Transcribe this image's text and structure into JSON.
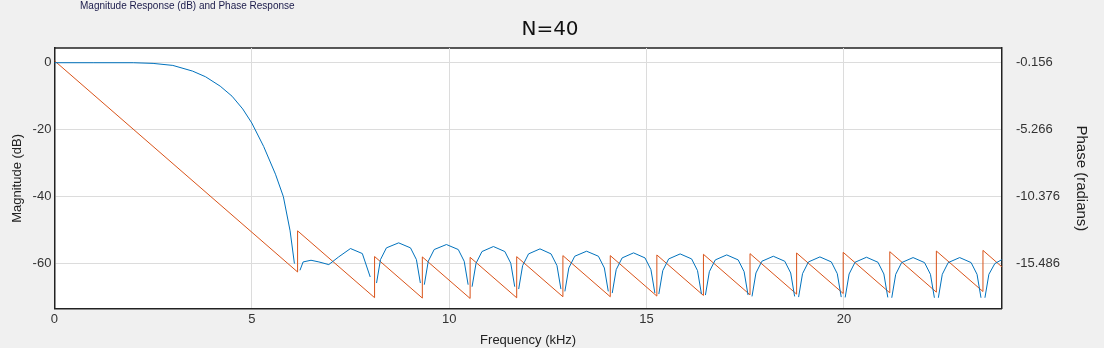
{
  "chart_data": {
    "type": "line",
    "title": "N=40",
    "xlabel": "Frequency (kHz)",
    "ylabel": "Magnitude (dB)",
    "y2label": "Phase (radians)",
    "annotations": [
      "Magnitude Response (dB) and Phase Response"
    ],
    "xlim": [
      0,
      24
    ],
    "xticks": [
      0,
      5,
      10,
      15,
      20
    ],
    "ylim": [
      -73.5,
      4.4
    ],
    "yticks": [
      -60,
      -40,
      -20,
      0
    ],
    "y2lim": [
      -18.94,
      0.968
    ],
    "y2ticks": [
      -15.486,
      -10.376,
      -5.266,
      -0.156
    ],
    "grid": true,
    "legend": false,
    "marker": "none",
    "line_style": "solid",
    "series": [
      {
        "color": "#0072bd",
        "x": [
          0,
          1,
          2,
          2.5,
          3,
          3.5,
          3.83,
          4.2,
          4.5,
          4.77,
          5,
          5.3,
          5.6,
          5.8,
          5.97,
          6.08,
          6.16,
          6.22,
          6.3,
          6.5,
          6.7,
          6.95,
          7.2,
          7.5,
          7.8,
          8,
          8.11,
          8.16,
          8.26,
          8.41,
          8.72,
          9.02,
          9.17,
          9.27,
          9.32,
          9.37,
          9.47,
          9.62,
          9.93,
          10.23,
          10.38,
          10.48,
          10.53,
          10.58,
          10.68,
          10.83,
          11.12,
          11.41,
          11.56,
          11.66,
          11.71,
          11.76,
          11.86,
          12.01,
          12.3,
          12.58,
          12.73,
          12.83,
          12.88,
          12.93,
          13.03,
          13.18,
          13.48,
          13.78,
          13.93,
          14.03,
          14.08,
          14.13,
          14.23,
          14.38,
          14.67,
          14.96,
          15.11,
          15.21,
          15.26,
          15.31,
          15.41,
          15.56,
          15.85,
          16.14,
          16.29,
          16.39,
          16.44,
          16.49,
          16.59,
          16.74,
          17.03,
          17.32,
          17.47,
          17.57,
          17.62,
          17.67,
          17.77,
          17.92,
          18.21,
          18.5,
          18.65,
          18.75,
          18.8,
          18.85,
          18.95,
          19.1,
          19.39,
          19.68,
          19.83,
          19.93,
          19.98,
          20.03,
          20.13,
          20.28,
          20.57,
          20.86,
          21.01,
          21.11,
          21.16,
          21.21,
          21.31,
          21.46,
          21.75,
          22.04,
          22.19,
          22.29,
          22.34,
          22.39,
          22.49,
          22.64,
          22.93,
          23.22,
          23.37,
          23.47,
          23.52,
          23.57,
          23.67,
          23.82,
          24
        ],
        "values": [
          0,
          0,
          0,
          -0.2,
          -0.8,
          -2.5,
          -4.2,
          -7,
          -10,
          -13.8,
          -18,
          -25,
          -33.3,
          -40,
          -50.2,
          -60,
          null,
          -62,
          -59.5,
          -59,
          -59.5,
          -60.3,
          -58,
          -55.5,
          -57,
          -64,
          null,
          -65.8,
          -58.8,
          -55.3,
          -53.8,
          -55.3,
          -58.8,
          -65.8,
          null,
          -66.3,
          -59.3,
          -55.8,
          -54.3,
          -55.8,
          -59.3,
          -66.3,
          null,
          -66.9,
          -59.9,
          -56.4,
          -54.9,
          -56.4,
          -59.9,
          -66.9,
          null,
          -67.6,
          -60.6,
          -57.1,
          -55.6,
          -57.1,
          -60.6,
          -67.6,
          null,
          -68.3,
          -61.3,
          -57.8,
          -56.3,
          -57.8,
          -61.3,
          -68.3,
          null,
          -68.8,
          -61.8,
          -58.3,
          -56.8,
          -58.3,
          -61.8,
          -68.8,
          null,
          -69.1,
          -62.1,
          -58.6,
          -57.1,
          -58.6,
          -62.1,
          -69.1,
          null,
          -69.4,
          -62.4,
          -58.9,
          -57.4,
          -58.9,
          -62.4,
          -69.4,
          null,
          -69.8,
          -62.8,
          -59.3,
          -57.8,
          -59.3,
          -62.8,
          -69.8,
          null,
          -70,
          -63,
          -59.5,
          -58,
          -59.5,
          -63,
          -70,
          null,
          -70.1,
          -63.1,
          -59.6,
          -58.1,
          -59.6,
          -63.1,
          -70.1,
          null,
          -70.2,
          -63.2,
          -59.7,
          -58.2,
          -59.7,
          -63.2,
          -70.2,
          null,
          -70.2,
          -63.2,
          -59.7,
          -58.2,
          -59.7,
          -63.2,
          -70.2,
          null,
          -70.2,
          -63.2,
          -60,
          -58.8
        ]
      },
      {
        "color": "#d95319",
        "axis": "y2",
        "x": [
          0,
          6.16,
          6.16,
          8.11,
          8.11,
          9.32,
          9.32,
          10.53,
          10.53,
          11.71,
          11.71,
          12.88,
          12.88,
          14.08,
          14.08,
          15.26,
          15.26,
          16.44,
          16.44,
          17.62,
          17.62,
          18.8,
          18.8,
          19.98,
          19.98,
          21.16,
          21.16,
          22.34,
          22.34,
          23.52,
          23.52,
          24
        ],
        "values": [
          0,
          -16.13,
          -12.99,
          -18.09,
          -14.95,
          -18.12,
          -14.98,
          -18.15,
          -15.01,
          -18.1,
          -14.96,
          -18.02,
          -14.88,
          -18.02,
          -14.88,
          -17.97,
          -14.83,
          -17.92,
          -14.78,
          -17.87,
          -14.73,
          -17.82,
          -14.68,
          -17.77,
          -14.63,
          -17.72,
          -14.58,
          -17.67,
          -14.53,
          -17.62,
          -14.48,
          -15.74
        ]
      }
    ]
  }
}
